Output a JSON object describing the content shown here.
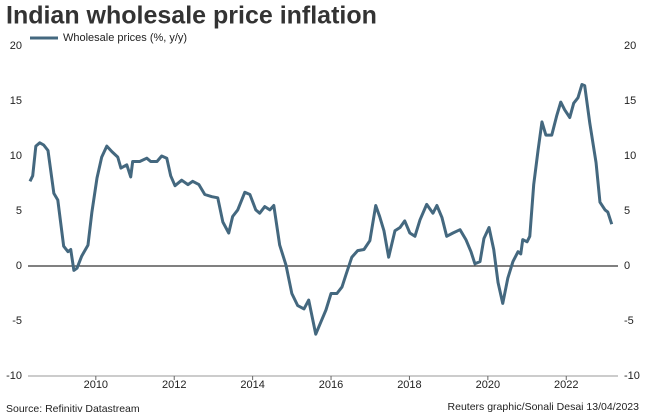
{
  "chart_data": {
    "type": "line",
    "title": "Indian wholesale price inflation",
    "source": "Source: Refinitiv Datastream",
    "credit": "Reuters graphic/Sonali Desai 13/04/2023",
    "x": [
      2008.32,
      2008.39,
      2008.47,
      2008.57,
      2008.67,
      2008.78,
      2008.93,
      2009.03,
      2009.18,
      2009.29,
      2009.36,
      2009.44,
      2009.52,
      2009.64,
      2009.8,
      2009.9,
      2010.03,
      2010.15,
      2010.28,
      2010.41,
      2010.56,
      2010.64,
      2010.79,
      2010.89,
      2010.94,
      2011.12,
      2011.3,
      2011.4,
      2011.56,
      2011.68,
      2011.81,
      2011.91,
      2012.02,
      2012.19,
      2012.35,
      2012.47,
      2012.63,
      2012.78,
      2012.96,
      2013.11,
      2013.24,
      2013.39,
      2013.49,
      2013.62,
      2013.8,
      2013.93,
      2014.08,
      2014.18,
      2014.31,
      2014.44,
      2014.54,
      2014.69,
      2014.85,
      2015.0,
      2015.15,
      2015.31,
      2015.43,
      2015.61,
      2015.74,
      2015.87,
      2016.0,
      2016.15,
      2016.28,
      2016.38,
      2016.53,
      2016.68,
      2016.84,
      2016.99,
      2017.14,
      2017.24,
      2017.35,
      2017.47,
      2017.63,
      2017.76,
      2017.88,
      2018.01,
      2018.14,
      2018.27,
      2018.44,
      2018.6,
      2018.7,
      2018.83,
      2018.95,
      2019.11,
      2019.29,
      2019.44,
      2019.57,
      2019.67,
      2019.8,
      2019.9,
      2020.03,
      2020.15,
      2020.26,
      2020.38,
      2020.51,
      2020.64,
      2020.77,
      2020.84,
      2020.89,
      2021.0,
      2021.07,
      2021.17,
      2021.28,
      2021.38,
      2021.48,
      2021.63,
      2021.76,
      2021.86,
      2021.96,
      2022.09,
      2022.19,
      2022.3,
      2022.4,
      2022.47,
      2022.6,
      2022.76,
      2022.86,
      2022.99,
      2023.06,
      2023.16
    ],
    "series": [
      {
        "name": "Wholesale prices (%, y/y)",
        "color": "#44687f",
        "values": [
          7.7,
          8.2,
          10.9,
          11.2,
          11.0,
          10.5,
          6.6,
          6.0,
          1.8,
          1.3,
          1.5,
          -0.4,
          -0.2,
          0.9,
          1.9,
          4.9,
          8.0,
          9.9,
          10.9,
          10.4,
          9.9,
          8.9,
          9.2,
          8.1,
          9.5,
          9.5,
          9.8,
          9.5,
          9.5,
          10.0,
          9.8,
          8.2,
          7.3,
          7.8,
          7.4,
          7.7,
          7.4,
          6.5,
          6.3,
          6.2,
          4.0,
          3.0,
          4.5,
          5.1,
          6.7,
          6.5,
          5.1,
          4.8,
          5.4,
          5.1,
          5.5,
          1.9,
          0.1,
          -2.5,
          -3.6,
          -3.9,
          -3.1,
          -6.2,
          -5.1,
          -4.0,
          -2.5,
          -2.5,
          -1.9,
          -0.8,
          0.8,
          1.4,
          1.5,
          2.3,
          5.5,
          4.5,
          3.2,
          0.8,
          3.2,
          3.5,
          4.1,
          3.0,
          2.7,
          4.2,
          5.6,
          4.8,
          5.5,
          4.4,
          2.7,
          3.0,
          3.3,
          2.4,
          1.3,
          0.2,
          0.4,
          2.5,
          3.5,
          1.5,
          -1.5,
          -3.4,
          -1.1,
          0.4,
          1.3,
          1.1,
          2.4,
          2.2,
          2.7,
          7.4,
          10.5,
          13.1,
          11.9,
          11.9,
          13.7,
          14.9,
          14.2,
          13.5,
          14.8,
          15.3,
          16.5,
          16.4,
          13.0,
          9.4,
          5.8,
          5.1,
          4.9,
          3.8
        ]
      }
    ],
    "xlim": [
      2008.27,
      2023.32
    ],
    "xticks": [
      2010,
      2012,
      2014,
      2016,
      2018,
      2020,
      2022
    ],
    "ylim": [
      -10,
      20
    ],
    "yticks": [
      -10,
      -5,
      0,
      5,
      10,
      15,
      20
    ],
    "y2lim": [
      -10,
      20
    ],
    "y2ticks": [
      -10,
      -5,
      0,
      5,
      10,
      15,
      20
    ],
    "grid": true
  }
}
